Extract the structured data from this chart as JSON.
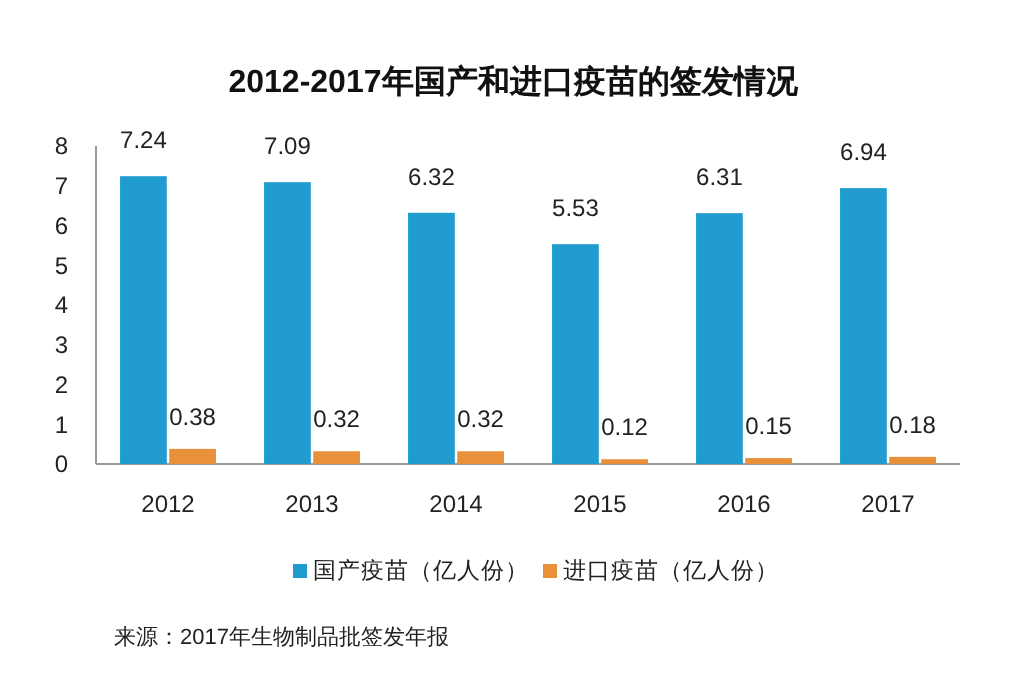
{
  "chart_data": {
    "type": "bar",
    "title": "2012-2017年国产和进口疫苗的签发情况",
    "categories": [
      "2012",
      "2013",
      "2014",
      "2015",
      "2016",
      "2017"
    ],
    "series": [
      {
        "name": "国产疫苗（亿人份）",
        "color": "#1f9bd0",
        "values": [
          7.24,
          7.09,
          6.32,
          5.53,
          6.31,
          6.94
        ]
      },
      {
        "name": "进口疫苗（亿人份）",
        "color": "#e8903a",
        "values": [
          0.38,
          0.32,
          0.32,
          0.12,
          0.15,
          0.18
        ]
      }
    ],
    "ylim": [
      0,
      8
    ],
    "yticks": [
      0,
      1,
      2,
      3,
      4,
      5,
      6,
      7,
      8
    ],
    "data_labels": true,
    "legend": "bottom",
    "grid": false,
    "annotations": [
      "来源：2017年生物制品批签发年报"
    ]
  }
}
